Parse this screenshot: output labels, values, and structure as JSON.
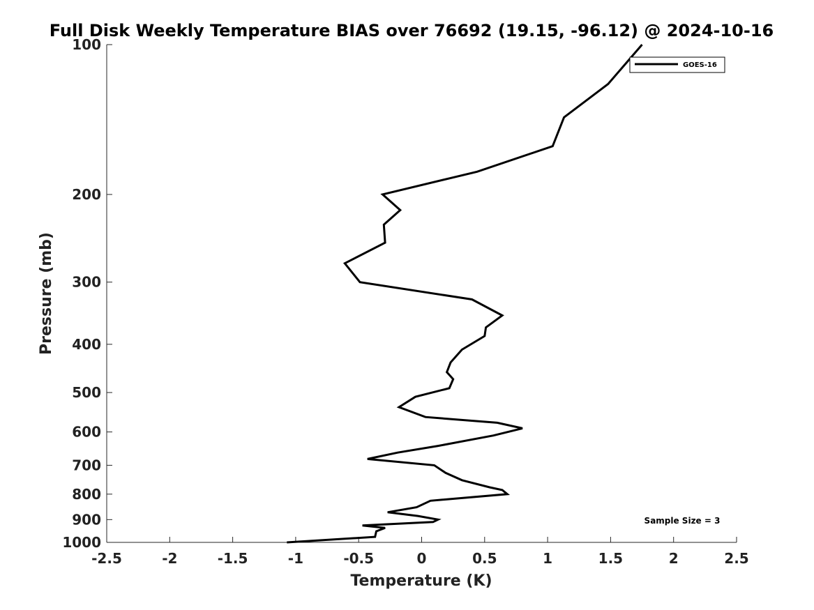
{
  "chart_data": {
    "type": "line",
    "title": "Full Disk Weekly Temperature BIAS over 76692 (19.15, -96.12) @ 2024-10-16",
    "xlabel": "Temperature (K)",
    "ylabel": "Pressure (mb)",
    "xlim": [
      -2.5,
      2.5
    ],
    "ylim": [
      100,
      1000
    ],
    "y_scale": "log",
    "y_reversed": true,
    "x_ticks": [
      -2.5,
      -2,
      -1.5,
      -1,
      -0.5,
      0,
      0.5,
      1,
      1.5,
      2,
      2.5
    ],
    "x_tick_labels": [
      "-2.5",
      "-2",
      "-1.5",
      "-1",
      "-0.5",
      "0",
      "0.5",
      "1",
      "1.5",
      "2",
      "2.5"
    ],
    "y_ticks": [
      100,
      200,
      300,
      400,
      500,
      600,
      700,
      800,
      900,
      1000
    ],
    "y_tick_labels": [
      "100",
      "200",
      "300",
      "400",
      "500",
      "600",
      "700",
      "800",
      "900",
      "1000"
    ],
    "grid": false,
    "legend_position": "top-right",
    "annotation": "Sample Size = 3",
    "series": [
      {
        "name": "GOES-16",
        "color": "#000000",
        "points": [
          [
            1.75,
            100
          ],
          [
            1.48,
            120
          ],
          [
            1.13,
            140
          ],
          [
            1.04,
            160
          ],
          [
            0.44,
            180
          ],
          [
            -0.31,
            200
          ],
          [
            -0.17,
            215
          ],
          [
            -0.3,
            230
          ],
          [
            -0.29,
            250
          ],
          [
            -0.61,
            275
          ],
          [
            -0.49,
            300
          ],
          [
            0.4,
            325
          ],
          [
            0.64,
            350
          ],
          [
            0.51,
            370
          ],
          [
            0.5,
            385
          ],
          [
            0.32,
            410
          ],
          [
            0.23,
            435
          ],
          [
            0.2,
            455
          ],
          [
            0.25,
            470
          ],
          [
            0.22,
            490
          ],
          [
            -0.05,
            510
          ],
          [
            -0.18,
            535
          ],
          [
            0.03,
            560
          ],
          [
            0.6,
            575
          ],
          [
            0.8,
            590
          ],
          [
            0.57,
            610
          ],
          [
            0.13,
            640
          ],
          [
            -0.19,
            660
          ],
          [
            -0.43,
            680
          ],
          [
            0.1,
            700
          ],
          [
            0.19,
            725
          ],
          [
            0.32,
            750
          ],
          [
            0.54,
            775
          ],
          [
            0.64,
            785
          ],
          [
            0.68,
            800
          ],
          [
            0.07,
            825
          ],
          [
            -0.04,
            850
          ],
          [
            -0.27,
            870
          ],
          [
            -0.03,
            885
          ],
          [
            0.13,
            900
          ],
          [
            0.09,
            910
          ],
          [
            -0.47,
            925
          ],
          [
            -0.29,
            935
          ],
          [
            -0.36,
            950
          ],
          [
            -0.37,
            975
          ],
          [
            -1.07,
            1000
          ]
        ]
      }
    ]
  }
}
